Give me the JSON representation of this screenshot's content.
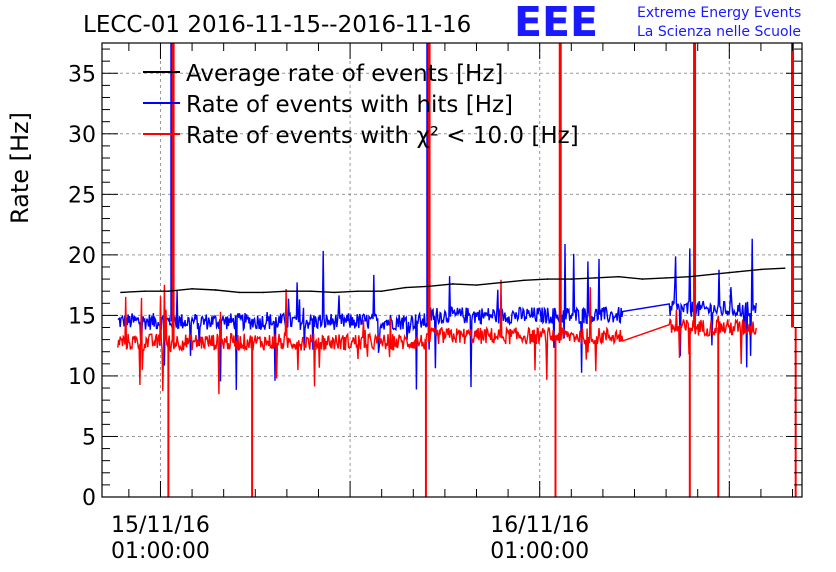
{
  "chart_data": {
    "type": "line",
    "title": "LECC-01 2016-11-15--2016-11-16",
    "ylabel": "Rate [Hz]",
    "xlabel": "",
    "ylim": [
      0,
      37.5
    ],
    "yticks": [
      0,
      5,
      10,
      15,
      20,
      25,
      30,
      35
    ],
    "xlim_hours": [
      -3.7,
      40.6
    ],
    "xticks": [
      {
        "hour": 0,
        "line1": "15/11/16",
        "line2": "01:00:00"
      },
      {
        "hour": 24,
        "line1": "16/11/16",
        "line2": "01:00:00"
      }
    ],
    "grid": true,
    "legend_position": "top-left",
    "branding": {
      "logo": "EEE",
      "line1": "Extreme Energy Events",
      "line2": "La Scienza nelle Scuole",
      "color": "#1a1aff"
    },
    "series": [
      {
        "name": "Average rate of events [Hz]",
        "color": "#000000",
        "x": [
          -2.5,
          -1,
          0.5,
          2,
          3.5,
          5,
          6.5,
          8,
          9.5,
          11,
          12.5,
          14,
          15.5,
          17,
          18.5,
          20,
          21.5,
          23,
          24.5,
          26,
          27.5,
          29,
          30.5,
          32,
          33.5,
          35,
          36.5,
          38,
          39.5
        ],
        "y": [
          16.9,
          17.0,
          17.0,
          17.2,
          17.1,
          16.9,
          16.9,
          17.0,
          17.0,
          16.9,
          17.0,
          17.0,
          17.3,
          17.4,
          17.6,
          17.5,
          17.7,
          17.9,
          18.0,
          18.0,
          18.1,
          18.2,
          18.0,
          18.1,
          18.2,
          18.4,
          18.6,
          18.8,
          18.9
        ]
      },
      {
        "name": "Rate of events with hits [Hz]",
        "color": "#0000ff",
        "start_hour": -2.7,
        "end_hour": 37.7,
        "gap_hours": [
          29.3,
          32.2
        ],
        "base_levels": [
          {
            "from": -2.7,
            "to": 17,
            "level": 14.5
          },
          {
            "from": 17,
            "to": 29.3,
            "level": 15.0
          },
          {
            "from": 32.2,
            "to": 37.7,
            "level": 15.5
          }
        ],
        "spikes_up_hours": [
          0.7,
          16.9
        ],
        "spike_up_value": 37.5
      },
      {
        "name": "Rate of events with χ² < 10.0 [Hz]",
        "color": "#ff0000",
        "start_hour": -2.7,
        "end_hour": 37.7,
        "gap_hours": [
          29.3,
          32.2
        ],
        "base_levels": [
          {
            "from": -2.7,
            "to": 17,
            "level": 12.8
          },
          {
            "from": 17,
            "to": 29.3,
            "level": 13.3
          },
          {
            "from": 32.2,
            "to": 37.7,
            "level": 14.0
          }
        ],
        "spikes_up_hours": [
          0.8,
          17.0,
          25.3,
          33.8,
          40.0
        ],
        "spike_up_value": 37.5,
        "dropouts_hours": [
          0.5,
          5.8,
          16.8,
          25.0,
          33.5,
          35.3,
          40.2
        ],
        "dropout_value": 0
      }
    ]
  }
}
